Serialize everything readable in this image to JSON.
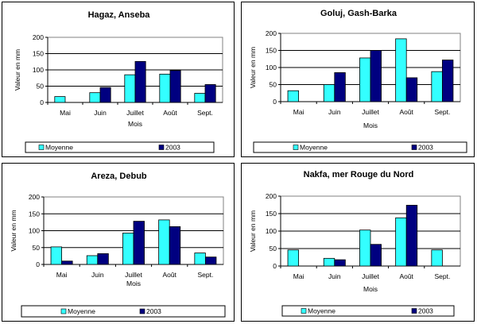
{
  "chart_data": [
    {
      "type": "bar",
      "title": "Hagaz, Anseba",
      "xlabel": "Mois",
      "ylabel": "Valeur en mm",
      "ylim": [
        0,
        200
      ],
      "yticks": [
        0,
        50,
        100,
        150,
        200
      ],
      "grid": true,
      "legend": "bottom",
      "categories": [
        "Mai",
        "Juin",
        "Juillet",
        "Août",
        "Sept."
      ],
      "series": [
        {
          "name": "Moyenne",
          "color": "#33ffff",
          "values": [
            18,
            30,
            85,
            87,
            28
          ]
        },
        {
          "name": "2003",
          "color": "#000080",
          "values": [
            0,
            46,
            126,
            98,
            55
          ]
        }
      ]
    },
    {
      "type": "bar",
      "title": "Goluj, Gash-Barka",
      "xlabel": "Mois",
      "ylabel": "Valeur en mm",
      "ylim": [
        0,
        200
      ],
      "yticks": [
        0,
        50,
        100,
        150,
        200
      ],
      "grid": true,
      "legend": "bottom",
      "categories": [
        "Mai",
        "Juin",
        "Juillet",
        "Août",
        "Sept."
      ],
      "series": [
        {
          "name": "Moyenne",
          "color": "#33ffff",
          "values": [
            32,
            50,
            128,
            184,
            88
          ]
        },
        {
          "name": "2003",
          "color": "#000080",
          "values": [
            0,
            85,
            150,
            70,
            122
          ]
        }
      ]
    },
    {
      "type": "bar",
      "title": "Areza, Debub",
      "xlabel": "Mois",
      "ylabel": "Valeur en mm",
      "ylim": [
        0,
        200
      ],
      "yticks": [
        0,
        50,
        100,
        150,
        200
      ],
      "grid": true,
      "legend": "bottom",
      "categories": [
        "Mai",
        "Juin",
        "Juillet",
        "Août",
        "Sept."
      ],
      "series": [
        {
          "name": "Moyenne",
          "color": "#33ffff",
          "values": [
            52,
            26,
            93,
            132,
            34
          ]
        },
        {
          "name": "2003",
          "color": "#000080",
          "values": [
            10,
            32,
            128,
            112,
            22
          ]
        }
      ]
    },
    {
      "type": "bar",
      "title": "Nakfa, mer Rouge du Nord",
      "xlabel": "Mois",
      "ylabel": "Valeur en mm",
      "ylim": [
        0,
        200
      ],
      "yticks": [
        0,
        50,
        100,
        150,
        200
      ],
      "grid": true,
      "legend": "bottom",
      "categories": [
        "Mai",
        "Juin",
        "Juillet",
        "Août",
        "Sept."
      ],
      "series": [
        {
          "name": "Moyenne",
          "color": "#33ffff",
          "values": [
            46,
            22,
            103,
            138,
            46
          ]
        },
        {
          "name": "2003",
          "color": "#000080",
          "values": [
            0,
            18,
            62,
            174,
            0
          ]
        }
      ]
    }
  ]
}
